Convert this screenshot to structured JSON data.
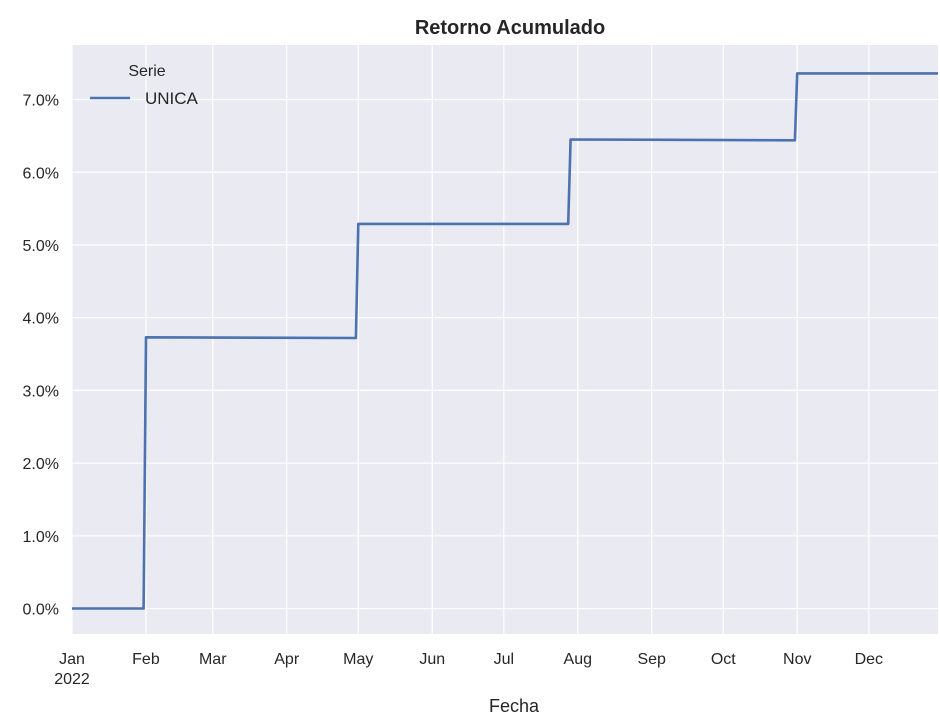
{
  "chart_data": {
    "type": "line",
    "title": "Retorno Acumulado",
    "xlabel": "Fecha",
    "ylabel": "",
    "x_ticks": [
      "Jan",
      "Feb",
      "Mar",
      "Apr",
      "May",
      "Jun",
      "Jul",
      "Aug",
      "Sep",
      "Oct",
      "Nov",
      "Dec"
    ],
    "x_tick_year": "2022",
    "y_ticks": [
      "0.0%",
      "1.0%",
      "2.0%",
      "3.0%",
      "4.0%",
      "5.0%",
      "6.0%",
      "7.0%"
    ],
    "ylim": [
      -0.35,
      7.75
    ],
    "xlim": [
      "2022-01-01",
      "2022-12-30"
    ],
    "grid": true,
    "legend": {
      "title": "Serie",
      "placement": "top-left"
    },
    "series": [
      {
        "name": "UNICA",
        "color": "#4c72b0",
        "x": [
          "2022-01-01",
          "2022-01-31",
          "2022-02-01",
          "2022-04-30",
          "2022-05-01",
          "2022-07-28",
          "2022-07-29",
          "2022-10-31",
          "2022-11-01",
          "2022-12-30"
        ],
        "y": [
          0.0,
          0.0,
          3.73,
          3.72,
          5.29,
          5.29,
          6.45,
          6.44,
          7.36,
          7.36
        ]
      }
    ]
  }
}
